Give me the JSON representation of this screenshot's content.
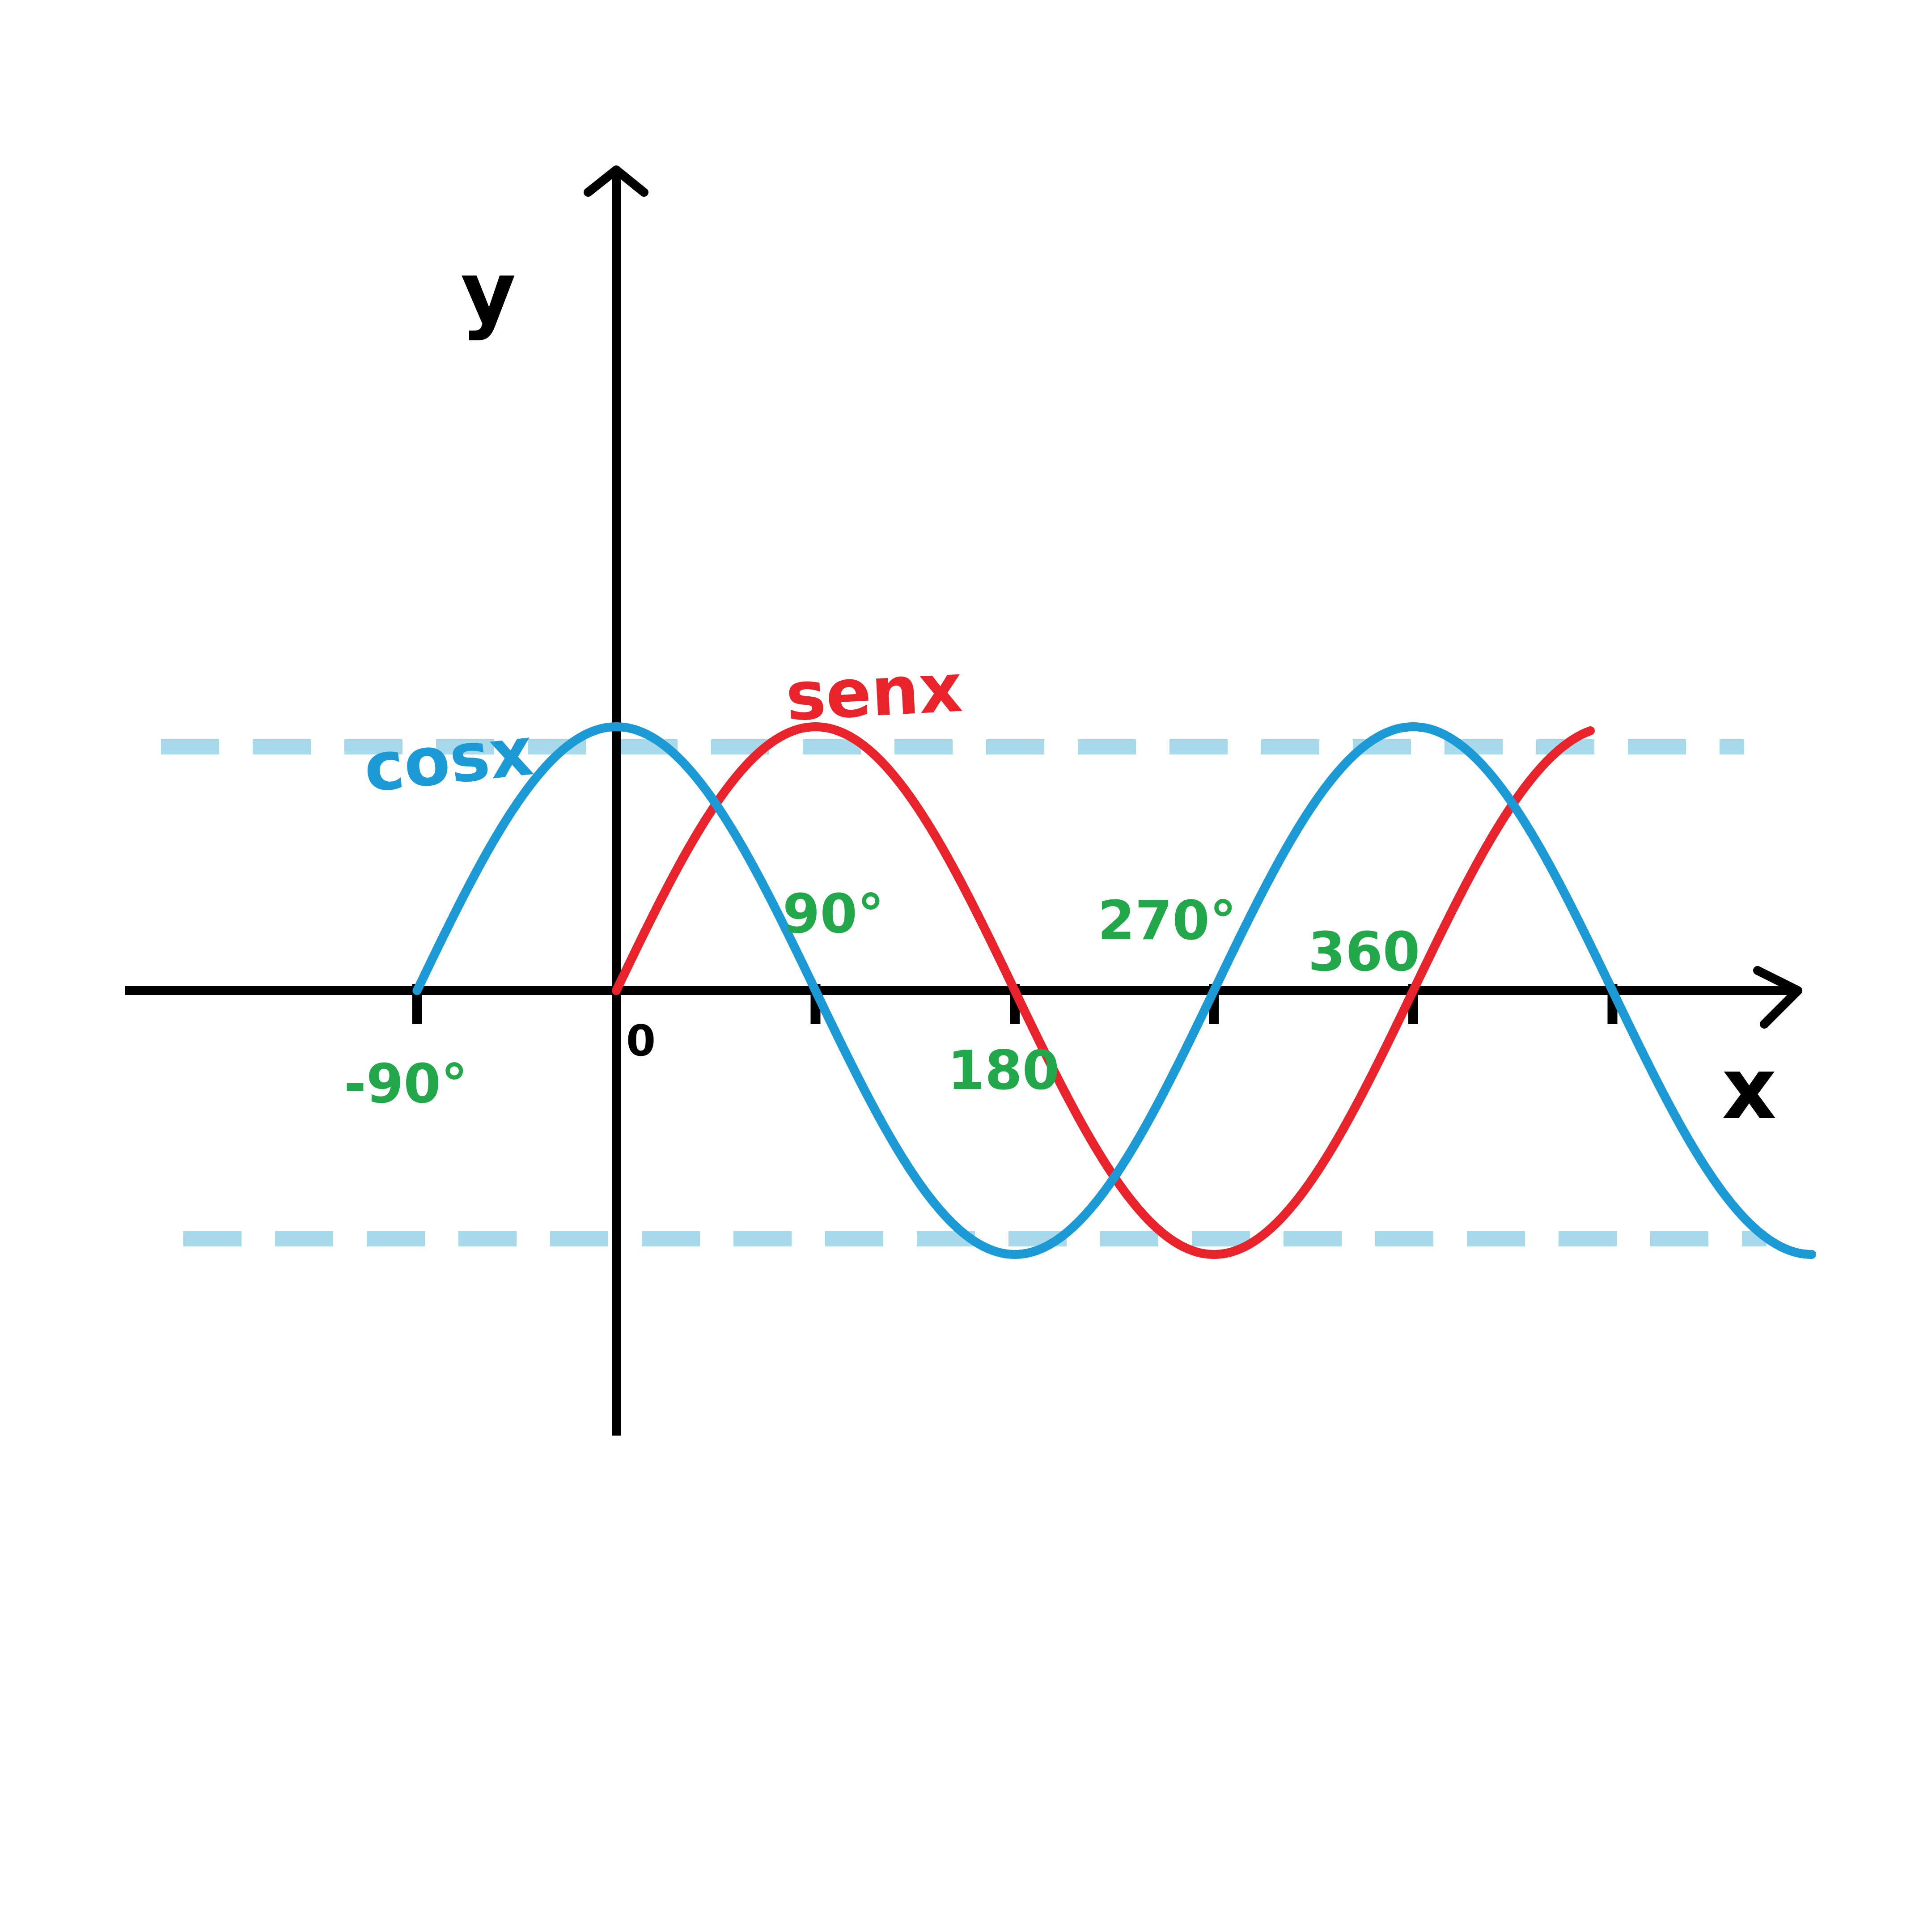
{
  "chart_data": {
    "type": "line",
    "title": "",
    "xlabel": "x",
    "ylabel": "y",
    "origin_label": "0",
    "x_unit": "degrees",
    "xlim": [
      -90,
      450
    ],
    "ylim": [
      -1,
      1
    ],
    "x_ticks": [
      -90,
      0,
      90,
      180,
      270,
      360,
      450
    ],
    "tick_labels": [
      {
        "x": -90,
        "text": "-90°"
      },
      {
        "x": 90,
        "text": "90°"
      },
      {
        "x": 180,
        "text": "180"
      },
      {
        "x": 270,
        "text": "270°"
      },
      {
        "x": 360,
        "text": "360"
      }
    ],
    "bound_lines": [
      1,
      -1
    ],
    "series": [
      {
        "name": "senx",
        "color": "#e8232b",
        "function": "sin",
        "x_range": [
          0,
          440
        ]
      },
      {
        "name": "cosx",
        "color": "#1c9ad6",
        "function": "cos",
        "x_range": [
          -90,
          540
        ]
      }
    ],
    "colors": {
      "axes": "#000000",
      "bound_lines": "#a6d9ea",
      "tick_labels": "#22a84a"
    }
  }
}
